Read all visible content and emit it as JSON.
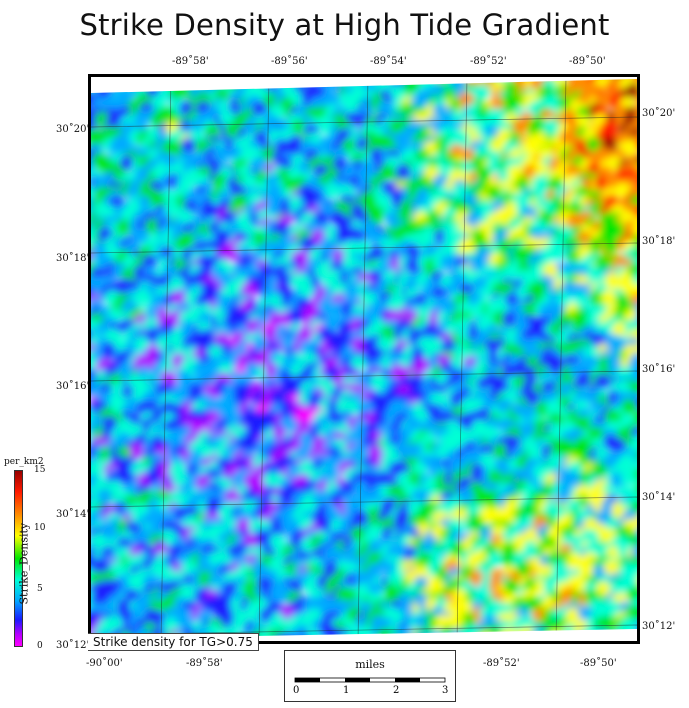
{
  "title": "Strike Density at High Tide Gradient",
  "top_lon_labels": [
    "-89˚58'",
    "-89˚56'",
    "-89˚54'",
    "-89˚52'",
    "-89˚50'"
  ],
  "bottom_lon_labels": [
    "-90˚00'",
    "-89˚58'",
    "-89˚52'",
    "-89˚50'"
  ],
  "left_lat_labels": [
    "30˚20'",
    "30˚18'",
    "30˚16'",
    "30˚14'",
    "30˚12'"
  ],
  "right_lat_labels": [
    "30˚20'",
    "30˚18'",
    "30˚16'",
    "30˚14'",
    "30˚12'"
  ],
  "caption": "Strike density for TG>0.75",
  "scale_bar": {
    "title": "miles",
    "ticks": [
      "0",
      "1",
      "2",
      "3"
    ]
  },
  "colorbar": {
    "unit": "per_km2",
    "title": "Strike_Density",
    "ticks": [
      "15",
      "10",
      "5",
      "0"
    ],
    "colors": [
      "#ff00ff",
      "#b000ff",
      "#1a1aff",
      "#00aaff",
      "#00ffd5",
      "#00e600",
      "#ffff00",
      "#ff8c00",
      "#ff1a00",
      "#990000"
    ]
  }
}
